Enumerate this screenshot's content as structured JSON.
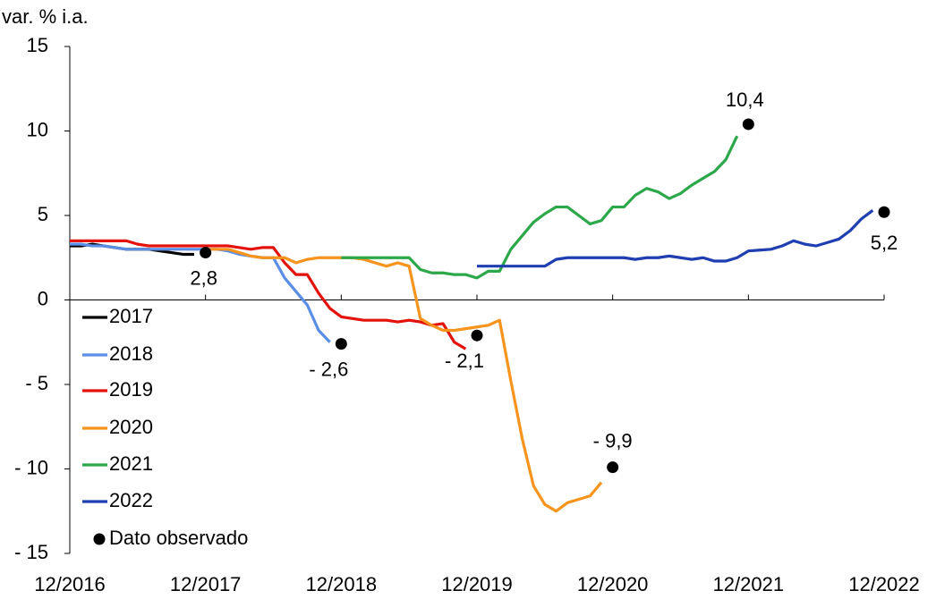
{
  "chart_data": {
    "type": "line",
    "y_label": "var. % i.a.",
    "xlim": [
      "12/2016",
      "12/2022"
    ],
    "xticks": [
      "12/2016",
      "12/2017",
      "12/2018",
      "12/2019",
      "12/2020",
      "12/2021",
      "12/2022"
    ],
    "ylim": [
      -15,
      15
    ],
    "yticks": [
      {
        "value": -15,
        "label": "- 15"
      },
      {
        "value": -10,
        "label": "- 10"
      },
      {
        "value": -5,
        "label": "- 5"
      },
      0,
      5,
      10,
      15
    ],
    "series": [
      {
        "name": "2017",
        "color": "#000000",
        "x": [
          "12/2016",
          "01/2017",
          "02/2017",
          "03/2017",
          "04/2017",
          "05/2017",
          "06/2017",
          "07/2017",
          "08/2017",
          "09/2017",
          "10/2017",
          "11/2017"
        ],
        "values": [
          3.2,
          3.2,
          3.3,
          3.2,
          3.1,
          3.0,
          3.0,
          3.0,
          2.9,
          2.8,
          2.7,
          2.7
        ]
      },
      {
        "name": "2018",
        "color": "#5b8ee6",
        "x": [
          "12/2016",
          "01/2017",
          "02/2017",
          "03/2017",
          "04/2017",
          "05/2017",
          "06/2017",
          "07/2017",
          "08/2017",
          "09/2017",
          "10/2017",
          "11/2017",
          "12/2017",
          "01/2018",
          "02/2018",
          "03/2018",
          "04/2018",
          "05/2018",
          "06/2018",
          "07/2018",
          "08/2018",
          "09/2018",
          "10/2018",
          "11/2018"
        ],
        "values": [
          3.3,
          3.3,
          3.2,
          3.2,
          3.1,
          3.0,
          3.0,
          3.0,
          3.0,
          3.0,
          3.0,
          3.0,
          3.0,
          3.0,
          2.9,
          2.7,
          2.6,
          2.5,
          2.5,
          1.3,
          0.5,
          -0.3,
          -1.8,
          -2.5
        ]
      },
      {
        "name": "2019",
        "color": "#e3120b",
        "x": [
          "12/2016",
          "01/2017",
          "02/2017",
          "03/2017",
          "04/2017",
          "05/2017",
          "06/2017",
          "07/2017",
          "08/2017",
          "09/2017",
          "10/2017",
          "11/2017",
          "12/2017",
          "01/2018",
          "02/2018",
          "03/2018",
          "04/2018",
          "05/2018",
          "06/2018",
          "07/2018",
          "08/2018",
          "09/2018",
          "10/2018",
          "11/2018",
          "12/2018",
          "01/2019",
          "02/2019",
          "03/2019",
          "04/2019",
          "05/2019",
          "06/2019",
          "07/2019",
          "08/2019",
          "09/2019",
          "10/2019",
          "11/2019"
        ],
        "values": [
          3.5,
          3.5,
          3.5,
          3.5,
          3.5,
          3.5,
          3.3,
          3.2,
          3.2,
          3.2,
          3.2,
          3.2,
          3.2,
          3.2,
          3.2,
          3.1,
          3.0,
          3.1,
          3.1,
          2.2,
          1.5,
          1.5,
          0.4,
          -0.5,
          -1.0,
          -1.1,
          -1.2,
          -1.2,
          -1.2,
          -1.3,
          -1.2,
          -1.3,
          -1.5,
          -1.4,
          -2.5,
          -2.9
        ]
      },
      {
        "name": "2020",
        "color": "#f7941d",
        "x": [
          "12/2017",
          "01/2018",
          "02/2018",
          "03/2018",
          "04/2018",
          "05/2018",
          "06/2018",
          "07/2018",
          "08/2018",
          "09/2018",
          "10/2018",
          "11/2018",
          "12/2018",
          "01/2019",
          "02/2019",
          "03/2019",
          "04/2019",
          "05/2019",
          "06/2019",
          "07/2019",
          "08/2019",
          "09/2019",
          "10/2019",
          "11/2019",
          "12/2019",
          "01/2020",
          "02/2020",
          "03/2020",
          "04/2020",
          "05/2020",
          "06/2020",
          "07/2020",
          "08/2020",
          "09/2020",
          "10/2020",
          "11/2020"
        ],
        "values": [
          3.0,
          3.0,
          3.0,
          2.8,
          2.6,
          2.5,
          2.5,
          2.5,
          2.2,
          2.4,
          2.5,
          2.5,
          2.5,
          2.5,
          2.4,
          2.2,
          2.0,
          2.2,
          2.0,
          -1.1,
          -1.5,
          -1.8,
          -1.8,
          -1.7,
          -1.6,
          -1.5,
          -1.2,
          -4.8,
          -8.2,
          -11.0,
          -12.1,
          -12.5,
          -12.0,
          -11.8,
          -11.6,
          -10.8
        ]
      },
      {
        "name": "2021",
        "color": "#2ca84a",
        "x": [
          "12/2018",
          "01/2019",
          "02/2019",
          "03/2019",
          "04/2019",
          "05/2019",
          "06/2019",
          "07/2019",
          "08/2019",
          "09/2019",
          "10/2019",
          "11/2019",
          "12/2019",
          "01/2020",
          "02/2020",
          "03/2020",
          "04/2020",
          "05/2020",
          "06/2020",
          "07/2020",
          "08/2020",
          "09/2020",
          "10/2020",
          "11/2020",
          "12/2020",
          "01/2021",
          "02/2021",
          "03/2021",
          "04/2021",
          "05/2021",
          "06/2021",
          "07/2021",
          "08/2021",
          "09/2021",
          "10/2021",
          "11/2021"
        ],
        "values": [
          2.5,
          2.5,
          2.5,
          2.5,
          2.5,
          2.5,
          2.5,
          1.8,
          1.6,
          1.6,
          1.5,
          1.5,
          1.3,
          1.7,
          1.7,
          3.0,
          3.8,
          4.6,
          5.1,
          5.5,
          5.5,
          5.0,
          4.5,
          4.7,
          5.5,
          5.5,
          6.2,
          6.6,
          6.4,
          6.0,
          6.3,
          6.8,
          7.2,
          7.6,
          8.3,
          9.7
        ]
      },
      {
        "name": "2022",
        "color": "#1f3fb0",
        "x": [
          "12/2019",
          "01/2020",
          "02/2020",
          "03/2020",
          "04/2020",
          "05/2020",
          "06/2020",
          "07/2020",
          "08/2020",
          "09/2020",
          "10/2020",
          "11/2020",
          "12/2020",
          "01/2021",
          "02/2021",
          "03/2021",
          "04/2021",
          "05/2021",
          "06/2021",
          "07/2021",
          "08/2021",
          "09/2021",
          "10/2021",
          "11/2021",
          "12/2021",
          "01/2022",
          "02/2022",
          "03/2022",
          "04/2022",
          "05/2022",
          "06/2022",
          "07/2022",
          "08/2022",
          "09/2022",
          "10/2022",
          "11/2022"
        ],
        "values": [
          2.0,
          2.0,
          2.0,
          2.0,
          2.0,
          2.0,
          2.0,
          2.4,
          2.5,
          2.5,
          2.5,
          2.5,
          2.5,
          2.5,
          2.4,
          2.5,
          2.5,
          2.6,
          2.5,
          2.4,
          2.5,
          2.3,
          2.3,
          2.5,
          2.9,
          2.95,
          3.0,
          3.2,
          3.5,
          3.3,
          3.2,
          3.4,
          3.6,
          4.1,
          4.8,
          5.3
        ]
      }
    ],
    "observed": {
      "name": "Dato observado",
      "color": "#000000",
      "x": [
        "12/2017",
        "12/2018",
        "12/2019",
        "12/2020",
        "12/2021",
        "12/2022"
      ],
      "values": [
        2.8,
        -2.6,
        -2.1,
        -9.9,
        10.4,
        5.2
      ],
      "value_labels": [
        "2,8",
        "- 2,6",
        "- 2,1",
        "- 9,9",
        "10,4",
        "5,2"
      ]
    }
  }
}
